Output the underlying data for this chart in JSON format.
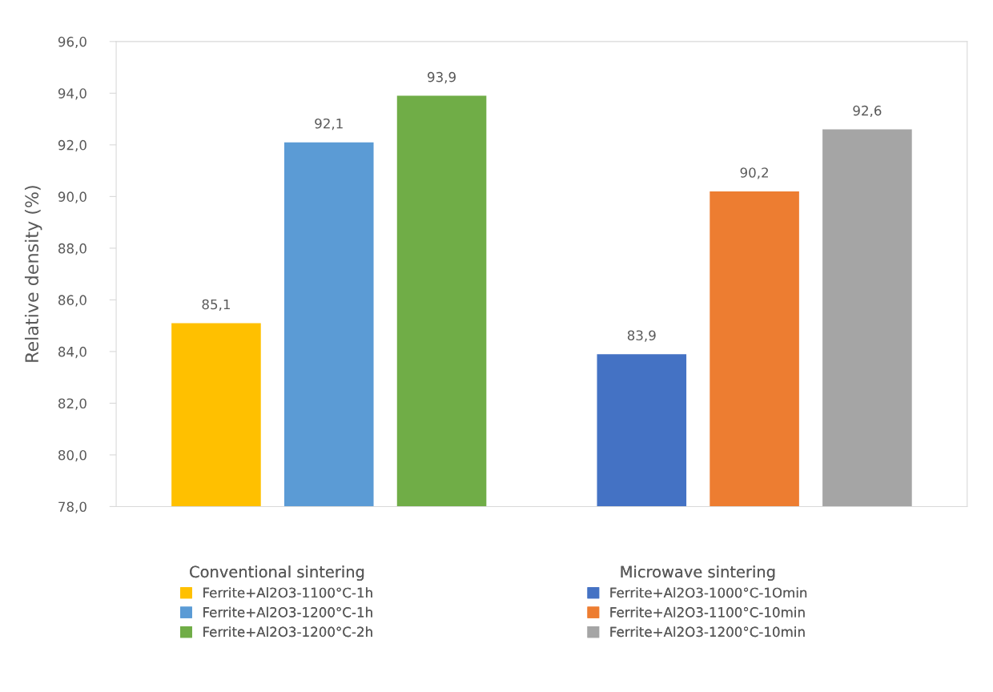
{
  "chart_data": {
    "type": "bar",
    "ylabel": "Relative density (%)",
    "categories": [
      null,
      null
    ],
    "series": [
      {
        "name": "Ferrite+Al2O3-1100°C-1h",
        "color": "#ffc000",
        "values": [
          85.1,
          null
        ],
        "value_labels": [
          "85,1",
          null
        ]
      },
      {
        "name": "Ferrite+Al2O3-1200°C-1h",
        "color": "#5b9bd5",
        "values": [
          92.1,
          null
        ],
        "value_labels": [
          "92,1",
          null
        ]
      },
      {
        "name": "Ferrite+Al2O3-1200°C-2h",
        "color": "#70ad47",
        "values": [
          93.9,
          null
        ],
        "value_labels": [
          "93,9",
          null
        ]
      },
      {
        "name": "Ferrite+Al2O3-1000°C-1Omin",
        "color": "#4472c4",
        "values": [
          null,
          83.9
        ],
        "value_labels": [
          null,
          "83,9"
        ]
      },
      {
        "name": "Ferrite+Al2O3-1100°C-10min",
        "color": "#ed7d31",
        "values": [
          null,
          90.2
        ],
        "value_labels": [
          null,
          "90,2"
        ]
      },
      {
        "name": "Ferrite+Al2O3-1200°C-10min",
        "color": "#a5a5a5",
        "values": [
          null,
          92.6
        ],
        "value_labels": [
          null,
          "92,6"
        ]
      }
    ],
    "annotations": [
      "Conventional sintering",
      "Microwave sintering"
    ],
    "ylim": [
      78,
      96
    ],
    "yticks": [
      {
        "value": 78,
        "label": "78,0"
      },
      {
        "value": 80,
        "label": "80,0"
      },
      {
        "value": 82,
        "label": "82,0"
      },
      {
        "value": 84,
        "label": "84,0"
      },
      {
        "value": 86,
        "label": "86,0"
      },
      {
        "value": 88,
        "label": "88,0"
      },
      {
        "value": 90,
        "label": "90,0"
      },
      {
        "value": 92,
        "label": "92,0"
      },
      {
        "value": 94,
        "label": "94,0"
      },
      {
        "value": 96,
        "label": "96,0"
      }
    ],
    "legend": "bottom"
  }
}
